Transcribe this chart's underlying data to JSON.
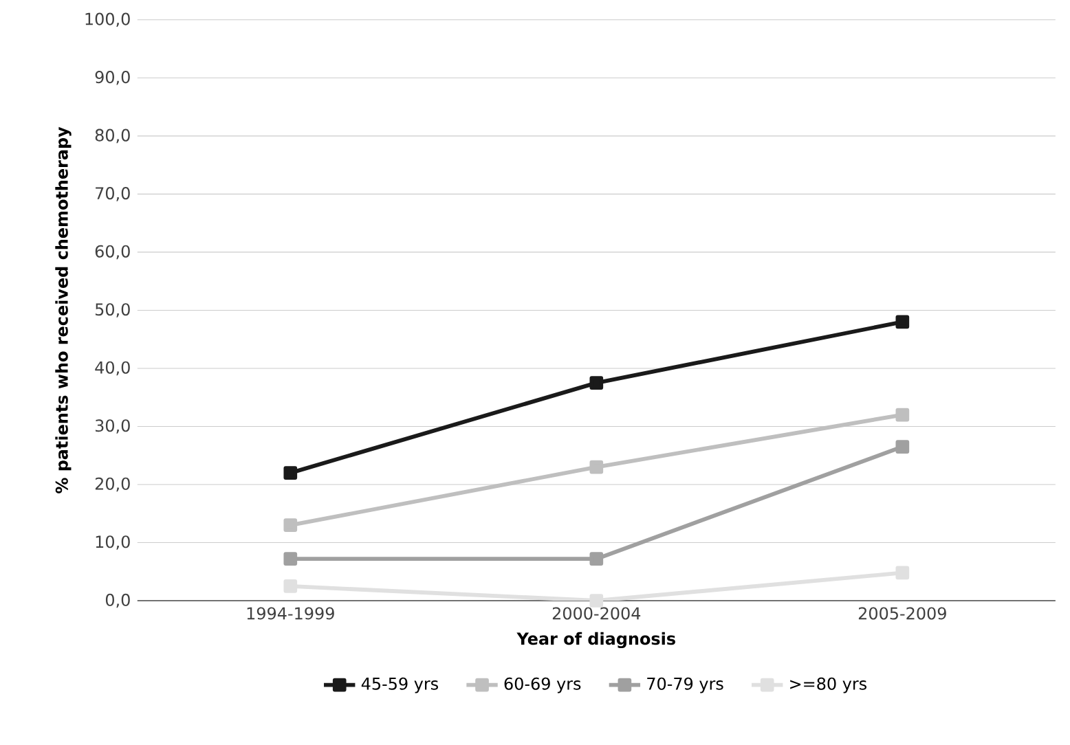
{
  "chart_data": {
    "type": "line",
    "xlabel": "Year of diagnosis",
    "ylabel": "% patients who received chemotherapy",
    "categories": [
      "1994-1999",
      "2000-2004",
      "2005-2009"
    ],
    "series": [
      {
        "name": "45-59 yrs",
        "color": "#1a1a1a",
        "values": [
          22,
          37.5,
          48
        ]
      },
      {
        "name": "60-69 yrs",
        "color": "#bfbfbf",
        "values": [
          13,
          23,
          32
        ]
      },
      {
        "name": "70-79 yrs",
        "color": "#a0a0a0",
        "values": [
          7.2,
          7.2,
          26.5
        ]
      },
      {
        "name": ">=80 yrs",
        "color": "#e0e0e0",
        "values": [
          2.5,
          0,
          4.8
        ]
      }
    ],
    "ylim": [
      0,
      100
    ],
    "yticks": [
      {
        "value": 0,
        "label": "0,0"
      },
      {
        "value": 10,
        "label": "10,0"
      },
      {
        "value": 20,
        "label": "20,0"
      },
      {
        "value": 30,
        "label": "30,0"
      },
      {
        "value": 40,
        "label": "40,0"
      },
      {
        "value": 50,
        "label": "50,0"
      },
      {
        "value": 60,
        "label": "60,0"
      },
      {
        "value": 70,
        "label": "70,0"
      },
      {
        "value": 80,
        "label": "80,0"
      },
      {
        "value": 90,
        "label": "90,0"
      },
      {
        "value": 100,
        "label": "100,0"
      }
    ],
    "grid": "y",
    "legend": "bottom",
    "marker": "square",
    "line_style": "solid"
  }
}
